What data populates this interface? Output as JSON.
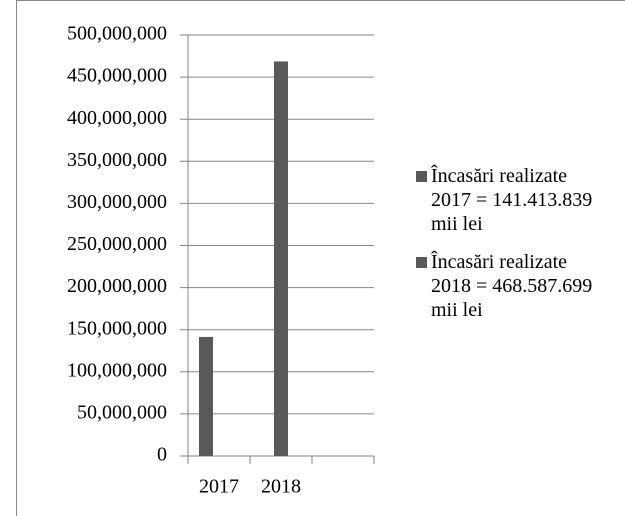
{
  "chart_data": {
    "type": "bar",
    "categories": [
      "2017",
      "2018",
      null
    ],
    "series": [
      {
        "name": "Încasări realizate 2017 = 141.413.839 mii lei",
        "color": "#595959",
        "values": [
          141413839,
          null,
          null
        ]
      },
      {
        "name": "Încasări realizate 2018 = 468.587.699 mii lei",
        "color": "#595959",
        "values": [
          null,
          468587699,
          null
        ]
      }
    ],
    "ylim": [
      0,
      500000000
    ],
    "yticks": [
      0,
      {
        "value": 50000000,
        "label": "50,000,000"
      },
      {
        "value": 100000000,
        "label": "100,000,000"
      },
      {
        "value": 150000000,
        "label": "150,000,000"
      },
      {
        "value": 200000000,
        "label": "200,000,000"
      },
      {
        "value": 250000000,
        "label": "250,000,000"
      },
      {
        "value": 300000000,
        "label": "300,000,000"
      },
      {
        "value": 350000000,
        "label": "350,000,000"
      },
      {
        "value": 400000000,
        "label": "400,000,000"
      },
      {
        "value": 450000000,
        "label": "450,000,000"
      },
      {
        "value": 500000000,
        "label": "500,000,000"
      }
    ],
    "grid": true,
    "legend": "right"
  }
}
